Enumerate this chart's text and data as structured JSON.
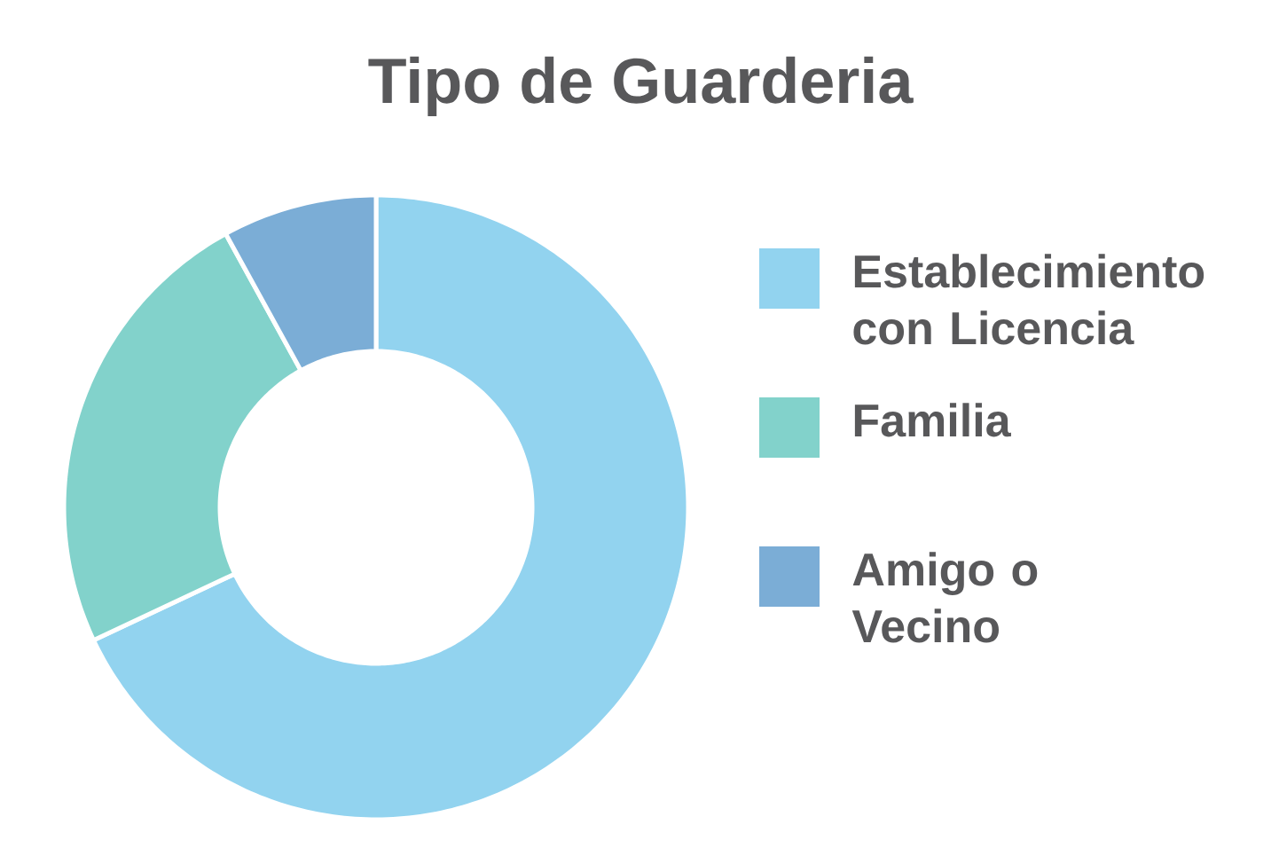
{
  "chart_data": {
    "type": "donut",
    "title": "Tipo de Guarderia",
    "categories": [
      "Establecimiento con Licencia",
      "Familia",
      "Amigo o Vecino"
    ],
    "values": [
      68,
      24,
      8
    ],
    "colors": [
      "#92d3ef",
      "#82d2cb",
      "#7badd6"
    ],
    "legend": "right"
  }
}
